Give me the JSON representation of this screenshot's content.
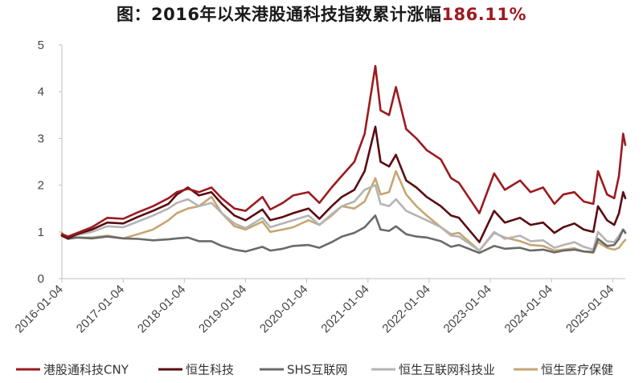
{
  "title": {
    "prefix": "图：2016年以来港股通科技指数累计涨幅",
    "highlight": "186.11%"
  },
  "colors": {
    "highlight": "#9c1a1f",
    "axis": "#bfbfbf",
    "text": "#444444"
  },
  "chart_data": {
    "type": "line",
    "ylim": [
      0,
      5
    ],
    "yticks": [
      "0",
      "1",
      "2",
      "3",
      "4",
      "5"
    ],
    "xlim": [
      "2016-01-04",
      "2025-03-20"
    ],
    "xticks": [
      "2016-01-04",
      "2017-01-04",
      "2018-01-04",
      "2019-01-04",
      "2020-01-04",
      "2021-01-04",
      "2022-01-04",
      "2023-01-04",
      "2024-01-04",
      "2025-01-04"
    ],
    "grid": false,
    "legend_position": "bottom",
    "series": [
      {
        "name": "港股通科技CNY",
        "color": "#9c1a1f",
        "x": [
          "2016-01-04",
          "2016-02-10",
          "2016-04-01",
          "2016-07-01",
          "2016-10-01",
          "2017-01-04",
          "2017-04-01",
          "2017-07-01",
          "2017-10-01",
          "2017-11-20",
          "2018-01-25",
          "2018-04-01",
          "2018-06-15",
          "2018-08-15",
          "2018-10-30",
          "2019-01-04",
          "2019-04-15",
          "2019-06-01",
          "2019-08-15",
          "2019-10-15",
          "2020-01-15",
          "2020-03-20",
          "2020-06-01",
          "2020-08-01",
          "2020-10-15",
          "2020-12-15",
          "2021-02-17",
          "2021-03-20",
          "2021-05-10",
          "2021-06-20",
          "2021-08-20",
          "2021-10-20",
          "2021-12-20",
          "2022-03-15",
          "2022-05-15",
          "2022-07-01",
          "2022-10-31",
          "2023-01-27",
          "2023-04-01",
          "2023-07-01",
          "2023-09-01",
          "2023-11-15",
          "2024-01-22",
          "2024-03-15",
          "2024-05-20",
          "2024-07-15",
          "2024-09-10",
          "2024-10-08",
          "2024-12-01",
          "2025-01-13",
          "2025-02-10",
          "2025-03-07",
          "2025-03-20"
        ],
        "y": [
          0.95,
          0.9,
          0.97,
          1.1,
          1.3,
          1.28,
          1.42,
          1.55,
          1.72,
          1.85,
          1.92,
          1.85,
          1.95,
          1.72,
          1.5,
          1.45,
          1.75,
          1.48,
          1.62,
          1.78,
          1.85,
          1.62,
          1.95,
          2.2,
          2.5,
          3.1,
          4.55,
          3.6,
          3.5,
          4.1,
          3.2,
          3.0,
          2.75,
          2.55,
          2.15,
          2.05,
          1.4,
          2.25,
          1.9,
          2.1,
          1.85,
          1.95,
          1.6,
          1.8,
          1.85,
          1.65,
          1.6,
          2.3,
          1.8,
          1.72,
          2.2,
          3.1,
          2.86
        ]
      },
      {
        "name": "恒生科技",
        "color": "#5a0c12",
        "x": [
          "2016-01-04",
          "2016-02-10",
          "2016-04-01",
          "2016-07-01",
          "2016-10-01",
          "2017-01-04",
          "2017-04-01",
          "2017-07-01",
          "2017-10-01",
          "2017-11-20",
          "2018-01-25",
          "2018-04-01",
          "2018-06-15",
          "2018-08-15",
          "2018-10-30",
          "2019-01-04",
          "2019-04-15",
          "2019-06-01",
          "2019-08-15",
          "2019-10-15",
          "2020-01-15",
          "2020-03-20",
          "2020-06-01",
          "2020-08-01",
          "2020-10-15",
          "2020-12-15",
          "2021-02-17",
          "2021-03-20",
          "2021-05-10",
          "2021-06-20",
          "2021-08-20",
          "2021-10-20",
          "2021-12-20",
          "2022-03-15",
          "2022-05-15",
          "2022-07-01",
          "2022-10-31",
          "2023-01-27",
          "2023-04-01",
          "2023-07-01",
          "2023-09-01",
          "2023-11-15",
          "2024-01-22",
          "2024-03-15",
          "2024-05-20",
          "2024-07-15",
          "2024-09-10",
          "2024-10-08",
          "2024-12-01",
          "2025-01-13",
          "2025-02-10",
          "2025-03-07",
          "2025-03-20"
        ],
        "y": [
          0.92,
          0.86,
          0.95,
          1.05,
          1.2,
          1.18,
          1.32,
          1.45,
          1.6,
          1.8,
          1.95,
          1.78,
          1.85,
          1.6,
          1.35,
          1.25,
          1.48,
          1.25,
          1.32,
          1.4,
          1.5,
          1.28,
          1.55,
          1.75,
          1.9,
          2.3,
          3.25,
          2.5,
          2.4,
          2.65,
          2.1,
          1.95,
          1.75,
          1.55,
          1.35,
          1.3,
          0.78,
          1.45,
          1.2,
          1.3,
          1.15,
          1.2,
          0.98,
          1.1,
          1.18,
          1.05,
          1.0,
          1.55,
          1.25,
          1.15,
          1.4,
          1.85,
          1.72
        ]
      },
      {
        "name": "SHS互联网",
        "color": "#6a6a6a",
        "x": [
          "2016-01-04",
          "2016-02-10",
          "2016-04-01",
          "2016-07-01",
          "2016-10-01",
          "2017-01-04",
          "2017-04-01",
          "2017-07-01",
          "2017-10-01",
          "2017-11-20",
          "2018-01-25",
          "2018-04-01",
          "2018-06-15",
          "2018-08-15",
          "2018-10-30",
          "2019-01-04",
          "2019-04-15",
          "2019-06-01",
          "2019-08-15",
          "2019-10-15",
          "2020-01-15",
          "2020-03-20",
          "2020-06-01",
          "2020-08-01",
          "2020-10-15",
          "2020-12-15",
          "2021-02-17",
          "2021-03-20",
          "2021-05-10",
          "2021-06-20",
          "2021-08-20",
          "2021-10-20",
          "2021-12-20",
          "2022-03-15",
          "2022-05-15",
          "2022-07-01",
          "2022-10-31",
          "2023-01-27",
          "2023-04-01",
          "2023-07-01",
          "2023-09-01",
          "2023-11-15",
          "2024-01-22",
          "2024-03-15",
          "2024-05-20",
          "2024-07-15",
          "2024-09-10",
          "2024-10-08",
          "2024-12-01",
          "2025-01-13",
          "2025-02-10",
          "2025-03-07",
          "2025-03-20"
        ],
        "y": [
          0.92,
          0.85,
          0.88,
          0.86,
          0.9,
          0.86,
          0.85,
          0.82,
          0.84,
          0.86,
          0.88,
          0.8,
          0.8,
          0.7,
          0.62,
          0.58,
          0.68,
          0.6,
          0.64,
          0.7,
          0.72,
          0.66,
          0.78,
          0.9,
          0.98,
          1.1,
          1.35,
          1.05,
          1.02,
          1.12,
          0.95,
          0.9,
          0.88,
          0.8,
          0.68,
          0.72,
          0.55,
          0.7,
          0.64,
          0.66,
          0.6,
          0.62,
          0.56,
          0.6,
          0.62,
          0.58,
          0.57,
          0.85,
          0.7,
          0.72,
          0.85,
          1.05,
          0.98
        ]
      },
      {
        "name": "恒生互联网科技业",
        "color": "#b4b4b4",
        "x": [
          "2016-01-04",
          "2016-02-10",
          "2016-04-01",
          "2016-07-01",
          "2016-10-01",
          "2017-01-04",
          "2017-04-01",
          "2017-07-01",
          "2017-10-01",
          "2017-11-20",
          "2018-01-25",
          "2018-04-01",
          "2018-06-15",
          "2018-08-15",
          "2018-10-30",
          "2019-01-04",
          "2019-04-15",
          "2019-06-01",
          "2019-08-15",
          "2019-10-15",
          "2020-01-15",
          "2020-03-20",
          "2020-06-01",
          "2020-08-01",
          "2020-10-15",
          "2020-12-15",
          "2021-02-17",
          "2021-03-20",
          "2021-05-10",
          "2021-06-20",
          "2021-08-20",
          "2021-10-20",
          "2021-12-20",
          "2022-03-15",
          "2022-05-15",
          "2022-07-01",
          "2022-10-31",
          "2023-01-27",
          "2023-04-01",
          "2023-07-01",
          "2023-09-01",
          "2023-11-15",
          "2024-01-22",
          "2024-03-15",
          "2024-05-20",
          "2024-07-15",
          "2024-09-10",
          "2024-10-08",
          "2024-12-01",
          "2025-01-13",
          "2025-02-10",
          "2025-03-07",
          "2025-03-20"
        ],
        "y": [
          0.93,
          0.87,
          0.93,
          1.0,
          1.12,
          1.1,
          1.22,
          1.35,
          1.5,
          1.62,
          1.7,
          1.55,
          1.62,
          1.4,
          1.18,
          1.08,
          1.3,
          1.1,
          1.18,
          1.25,
          1.35,
          1.15,
          1.38,
          1.55,
          1.65,
          1.9,
          2.0,
          1.6,
          1.55,
          1.7,
          1.45,
          1.35,
          1.25,
          1.1,
          0.92,
          0.9,
          0.6,
          1.0,
          0.85,
          0.92,
          0.8,
          0.82,
          0.66,
          0.72,
          0.78,
          0.68,
          0.62,
          1.0,
          0.8,
          0.78,
          0.92,
          1.05,
          0.98
        ]
      },
      {
        "name": "恒生医疗保健",
        "color": "#c6a672",
        "x": [
          "2016-01-04",
          "2016-02-10",
          "2016-04-01",
          "2016-07-01",
          "2016-10-01",
          "2017-01-04",
          "2017-04-01",
          "2017-07-01",
          "2017-10-01",
          "2017-11-20",
          "2018-01-25",
          "2018-04-01",
          "2018-06-15",
          "2018-08-15",
          "2018-10-30",
          "2019-01-04",
          "2019-04-15",
          "2019-06-01",
          "2019-08-15",
          "2019-10-15",
          "2020-01-15",
          "2020-03-20",
          "2020-06-01",
          "2020-08-01",
          "2020-10-15",
          "2020-12-15",
          "2021-02-17",
          "2021-03-20",
          "2021-05-10",
          "2021-06-20",
          "2021-08-20",
          "2021-10-20",
          "2021-12-20",
          "2022-03-15",
          "2022-05-15",
          "2022-07-01",
          "2022-10-31",
          "2023-01-27",
          "2023-04-01",
          "2023-07-01",
          "2023-09-01",
          "2023-11-15",
          "2024-01-22",
          "2024-03-15",
          "2024-05-20",
          "2024-07-15",
          "2024-09-10",
          "2024-10-08",
          "2024-12-01",
          "2025-01-13",
          "2025-02-10",
          "2025-03-07",
          "2025-03-20"
        ],
        "y": [
          0.98,
          0.85,
          0.88,
          0.88,
          0.92,
          0.86,
          0.95,
          1.05,
          1.25,
          1.4,
          1.5,
          1.55,
          1.75,
          1.4,
          1.12,
          1.05,
          1.22,
          1.0,
          1.05,
          1.1,
          1.25,
          1.15,
          1.35,
          1.55,
          1.5,
          1.65,
          2.15,
          1.8,
          1.85,
          2.3,
          1.8,
          1.55,
          1.35,
          1.1,
          0.95,
          0.98,
          0.6,
          0.98,
          0.88,
          0.8,
          0.72,
          0.7,
          0.6,
          0.62,
          0.65,
          0.58,
          0.55,
          0.78,
          0.66,
          0.62,
          0.66,
          0.78,
          0.83
        ]
      }
    ]
  }
}
